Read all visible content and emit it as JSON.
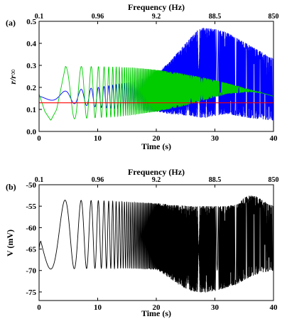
{
  "chart_data": [
    {
      "panel_label": "(a)",
      "type": "line",
      "top_axis_title": "Frequency (Hz)",
      "top_axis_ticks": [
        "0.1",
        "0.96",
        "9.2",
        "88.5",
        "850"
      ],
      "xlabel": "Time (s)",
      "ylabel": "r/r∞",
      "ylim": [
        0.0,
        0.5
      ],
      "xlim": [
        0,
        40
      ],
      "x_ticks": [
        0,
        10,
        20,
        30,
        40
      ],
      "y_ticks": [
        0.0,
        0.1,
        0.2,
        0.3,
        0.4,
        0.5
      ],
      "y_tick_labels": [
        "0.0",
        "0.1",
        "0.2",
        "0.3",
        "0.4",
        "0.5"
      ],
      "series": [
        {
          "color": "#0000ff",
          "envelope_upper": {
            "x": [
              0,
              10,
              15,
              20,
              22,
              24,
              26,
              27,
              28,
              30,
              32,
              34,
              36,
              38,
              40
            ],
            "y": [
              0.17,
              0.2,
              0.22,
              0.26,
              0.31,
              0.37,
              0.43,
              0.46,
              0.47,
              0.465,
              0.45,
              0.42,
              0.39,
              0.36,
              0.33
            ]
          },
          "envelope_lower": {
            "x": [
              0,
              10,
              15,
              20,
              22,
              24,
              26,
              27,
              28,
              30,
              32,
              34,
              36,
              38,
              40
            ],
            "y": [
              0.15,
              0.11,
              0.1,
              0.09,
              0.08,
              0.075,
              0.07,
              0.065,
              0.06,
              0.07,
              0.08,
              0.07,
              0.06,
              0.055,
              0.05
            ]
          }
        },
        {
          "color": "#00cc00",
          "envelope_upper": {
            "x": [
              4.5,
              8,
              12,
              16,
              20,
              24,
              28,
              32,
              36,
              38,
              40
            ],
            "y": [
              0.295,
              0.295,
              0.293,
              0.29,
              0.28,
              0.265,
              0.245,
              0.22,
              0.19,
              0.175,
              0.16
            ]
          },
          "envelope_lower": {
            "x": [
              4.5,
              8,
              12,
              16,
              20,
              24,
              28,
              32,
              36,
              38,
              40
            ],
            "y": [
              0.055,
              0.06,
              0.065,
              0.075,
              0.09,
              0.11,
              0.14,
              0.17,
              0.18,
              0.175,
              0.16
            ]
          },
          "start": {
            "x": [
              0,
              1,
              2,
              3,
              4.5
            ],
            "y": [
              0.17,
              0.09,
              0.05,
              0.1,
              0.295
            ]
          }
        },
        {
          "color": "#ff0000",
          "x": [
            0,
            40
          ],
          "y": [
            0.13,
            0.13
          ]
        }
      ]
    },
    {
      "panel_label": "(b)",
      "type": "line",
      "top_axis_title": "Frequency (Hz)",
      "top_axis_ticks": [
        "0.1",
        "0.96",
        "9.2",
        "88.5",
        "850"
      ],
      "xlabel": "Time (s)",
      "ylabel": "V (mV)",
      "ylim": [
        -77,
        -50
      ],
      "xlim": [
        0,
        40
      ],
      "x_ticks": [
        0,
        10,
        20,
        30,
        40
      ],
      "y_ticks": [
        -50,
        -55,
        -60,
        -65,
        -70,
        -75
      ],
      "y_tick_labels": [
        "-50",
        "-55",
        "-60",
        "-65",
        "-70",
        "-75"
      ],
      "series": [
        {
          "color": "#000000",
          "oscillation_upper": {
            "x": [
              0,
              10,
              20,
              24,
              26,
              28,
              30,
              32,
              34,
              35,
              36,
              37,
              38,
              40
            ],
            "y": [
              -53.5,
              -53.7,
              -54.3,
              -54.8,
              -55,
              -55,
              -55,
              -55,
              -54.5,
              -53,
              -52.5,
              -52.7,
              -53.5,
              -55
            ]
          },
          "oscillation_lower": {
            "x": [
              0,
              10,
              15,
              20,
              22,
              24,
              26,
              28,
              30,
              32,
              34,
              36,
              38,
              40
            ],
            "y": [
              -69.7,
              -69.5,
              -69.5,
              -69.8,
              -71.5,
              -73.5,
              -74.8,
              -75.2,
              -74.8,
              -74,
              -73,
              -71.5,
              -70.5,
              -70
            ]
          },
          "start_y": -65.0
        }
      ]
    }
  ]
}
